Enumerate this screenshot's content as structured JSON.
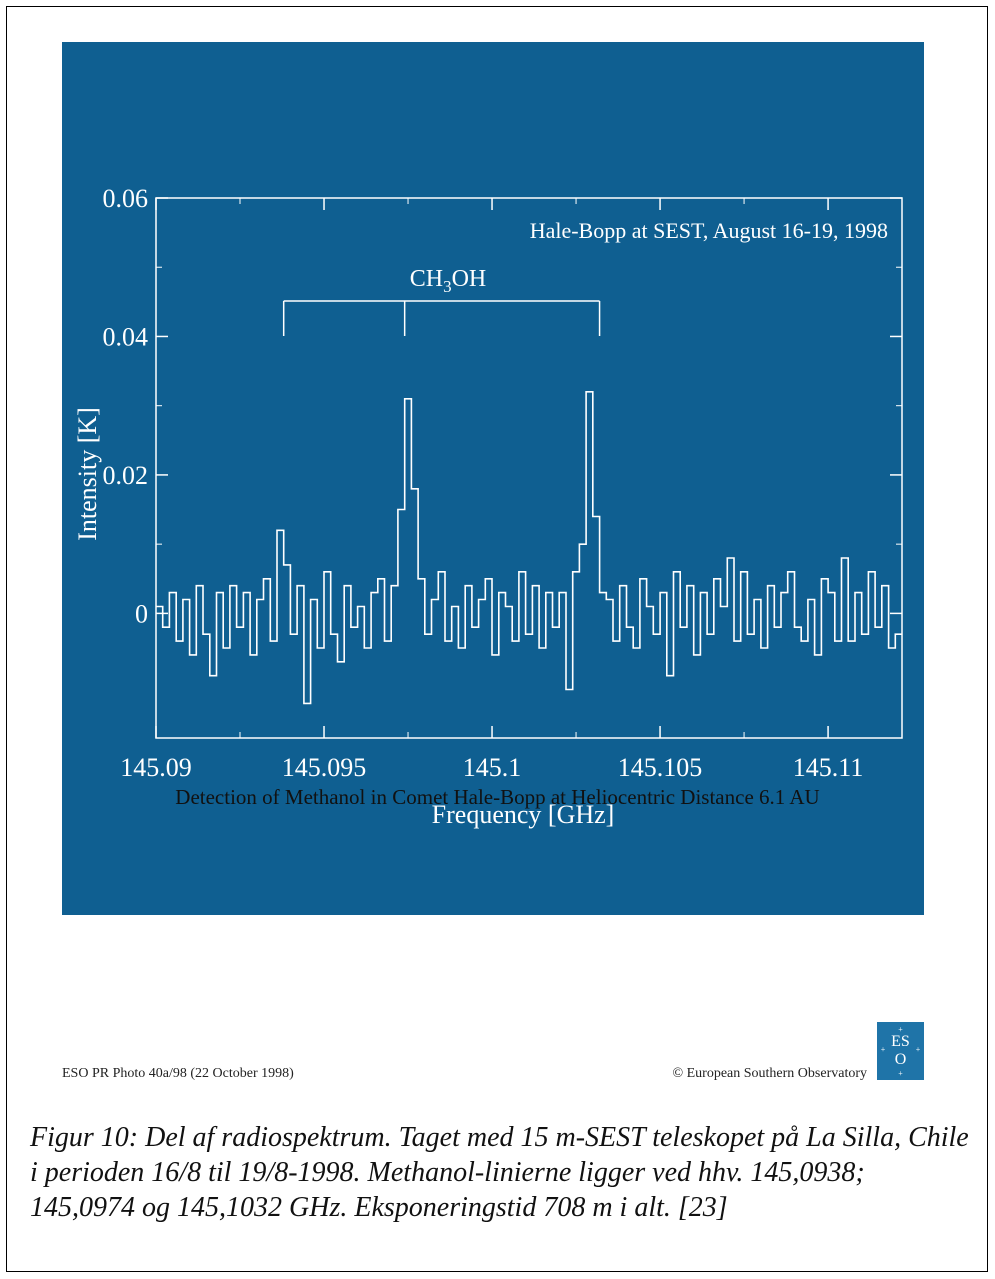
{
  "figure": {
    "title": "Detection of Methanol in Comet Hale-Bopp at Heliocentric Distance 6.1 AU",
    "credit_left": "ESO PR Photo 40a/98 (22 October 1998)",
    "credit_right": "© European Southern Observatory",
    "logo_text": "ESO",
    "caption": "Figur 10: Del af radiospektrum. Taget med 15 m-SEST teleskopet på La Silla, Chile i perioden 16/8 til 19/8-1998. Methanol-linierne ligger ved hhv. 145,0938; 145,0974 og 145,1032 GHz. Eksponeringstid 708 m i alt. [23]"
  },
  "colors": {
    "panel": "#0f5f91",
    "ink": "#ffffff"
  },
  "chart_data": {
    "type": "line",
    "title": "",
    "annotation": "Hale-Bopp at SEST, August 16-19, 1998",
    "molecule_label": {
      "main": "CH",
      "sub": "3",
      "rest": "OH"
    },
    "line_markers_x": [
      145.0938,
      145.0974,
      145.1032
    ],
    "xlabel": "Frequency [GHz]",
    "ylabel": "Intensity [K]",
    "xlim": [
      145.09,
      145.1122
    ],
    "ylim": [
      -0.018,
      0.06
    ],
    "xticks": [
      145.09,
      145.095,
      145.1,
      145.105,
      145.11
    ],
    "xtick_labels": [
      "145.09",
      "145.095",
      "145.1",
      "145.105",
      "145.11"
    ],
    "yticks": [
      0,
      0.02,
      0.04,
      0.06
    ],
    "ytick_labels": [
      "0",
      "0.02",
      "0.04",
      "0.06"
    ],
    "series": [
      {
        "x": [
          145.0901,
          145.0903,
          145.0905,
          145.0907,
          145.0909,
          145.0911,
          145.0913,
          145.0915,
          145.0917,
          145.0919,
          145.0921,
          145.0923,
          145.0925,
          145.0927,
          145.0929,
          145.0931,
          145.0933,
          145.0935,
          145.0937,
          145.0939,
          145.0941,
          145.0943,
          145.0945,
          145.0947,
          145.0949,
          145.0951,
          145.0953,
          145.0955,
          145.0957,
          145.0959,
          145.0961,
          145.0963,
          145.0965,
          145.0967,
          145.0969,
          145.0971,
          145.0973,
          145.0975,
          145.0977,
          145.0979,
          145.0981,
          145.0983,
          145.0985,
          145.0987,
          145.0989,
          145.0991,
          145.0993,
          145.0995,
          145.0997,
          145.0999,
          145.1001,
          145.1003,
          145.1005,
          145.1007,
          145.1009,
          145.1011,
          145.1013,
          145.1015,
          145.1017,
          145.1019,
          145.1021,
          145.1023,
          145.1025,
          145.1027,
          145.1029,
          145.1031,
          145.1033,
          145.1035,
          145.1037,
          145.1039,
          145.1041,
          145.1043,
          145.1045,
          145.1047,
          145.1049,
          145.1051,
          145.1053,
          145.1055,
          145.1057,
          145.1059,
          145.1061,
          145.1063,
          145.1065,
          145.1067,
          145.1069,
          145.1071,
          145.1073,
          145.1075,
          145.1077,
          145.1079,
          145.1081,
          145.1083,
          145.1085,
          145.1087,
          145.1089,
          145.1091,
          145.1093,
          145.1095,
          145.1097,
          145.1099,
          145.1101,
          145.1103,
          145.1105,
          145.1107,
          145.1109,
          145.1111,
          145.1113,
          145.1115,
          145.1117,
          145.1119,
          145.1121
        ],
        "y": [
          0.001,
          -0.002,
          0.003,
          -0.004,
          0.002,
          -0.006,
          0.004,
          -0.003,
          -0.009,
          0.003,
          -0.005,
          0.004,
          -0.002,
          0.003,
          -0.006,
          0.002,
          0.005,
          -0.004,
          0.012,
          0.007,
          -0.003,
          0.004,
          -0.013,
          0.002,
          -0.005,
          0.006,
          -0.003,
          -0.007,
          0.004,
          -0.002,
          0.001,
          -0.005,
          0.003,
          0.005,
          -0.004,
          0.004,
          0.015,
          0.031,
          0.018,
          0.005,
          -0.003,
          0.002,
          0.006,
          -0.004,
          0.001,
          -0.005,
          0.004,
          -0.002,
          0.002,
          0.005,
          -0.006,
          0.003,
          0.001,
          -0.004,
          0.006,
          -0.003,
          0.004,
          -0.005,
          0.003,
          -0.002,
          0.003,
          -0.011,
          0.006,
          0.01,
          0.032,
          0.014,
          0.003,
          0.002,
          -0.004,
          0.004,
          -0.002,
          -0.005,
          0.005,
          0.001,
          -0.003,
          0.003,
          -0.009,
          0.006,
          -0.002,
          0.004,
          -0.006,
          0.003,
          -0.003,
          0.005,
          0.001,
          0.008,
          -0.004,
          0.006,
          -0.003,
          0.002,
          -0.005,
          0.004,
          -0.002,
          0.003,
          0.006,
          -0.002,
          -0.004,
          0.002,
          -0.006,
          0.005,
          0.003,
          -0.004,
          0.008,
          -0.004,
          0.003,
          -0.003,
          0.006,
          -0.002,
          0.004,
          -0.005,
          -0.003
        ]
      }
    ]
  }
}
